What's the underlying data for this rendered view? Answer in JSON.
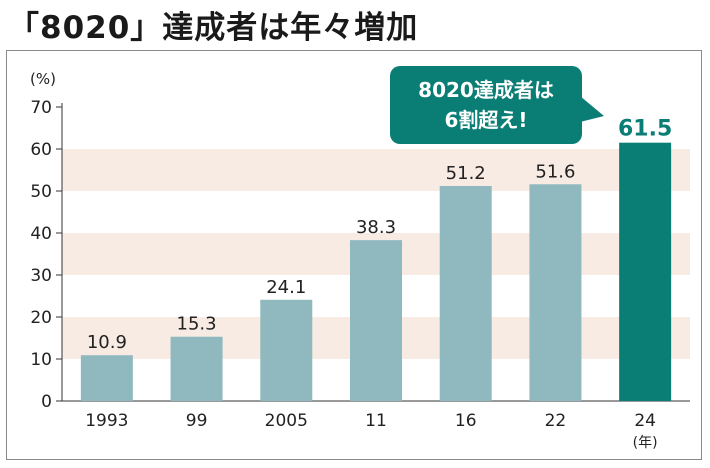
{
  "title": "「8020」達成者は年々増加",
  "chart_data": {
    "type": "bar",
    "categories": [
      "1993",
      "99",
      "2005",
      "11",
      "16",
      "22",
      "24"
    ],
    "values": [
      10.9,
      15.3,
      24.1,
      38.3,
      51.2,
      51.6,
      61.5
    ],
    "value_labels": [
      "10.9",
      "15.3",
      "24.1",
      "38.3",
      "51.2",
      "51.6",
      "61.5"
    ],
    "y_unit": "(%)",
    "x_unit": "(年)",
    "ylim": [
      0,
      70
    ],
    "yticks": [
      "0",
      "10",
      "20",
      "30",
      "40",
      "50",
      "60",
      "70"
    ],
    "grid": false,
    "bar_color": "#8fb9bf",
    "highlight_color": "#0a7d74",
    "highlight_index": 6,
    "band_color": "#f8ebe3",
    "callout": {
      "lines": [
        "8020達成者は",
        "6割超え!"
      ],
      "color": "#0a7d74",
      "text_color": "#ffffff"
    }
  }
}
